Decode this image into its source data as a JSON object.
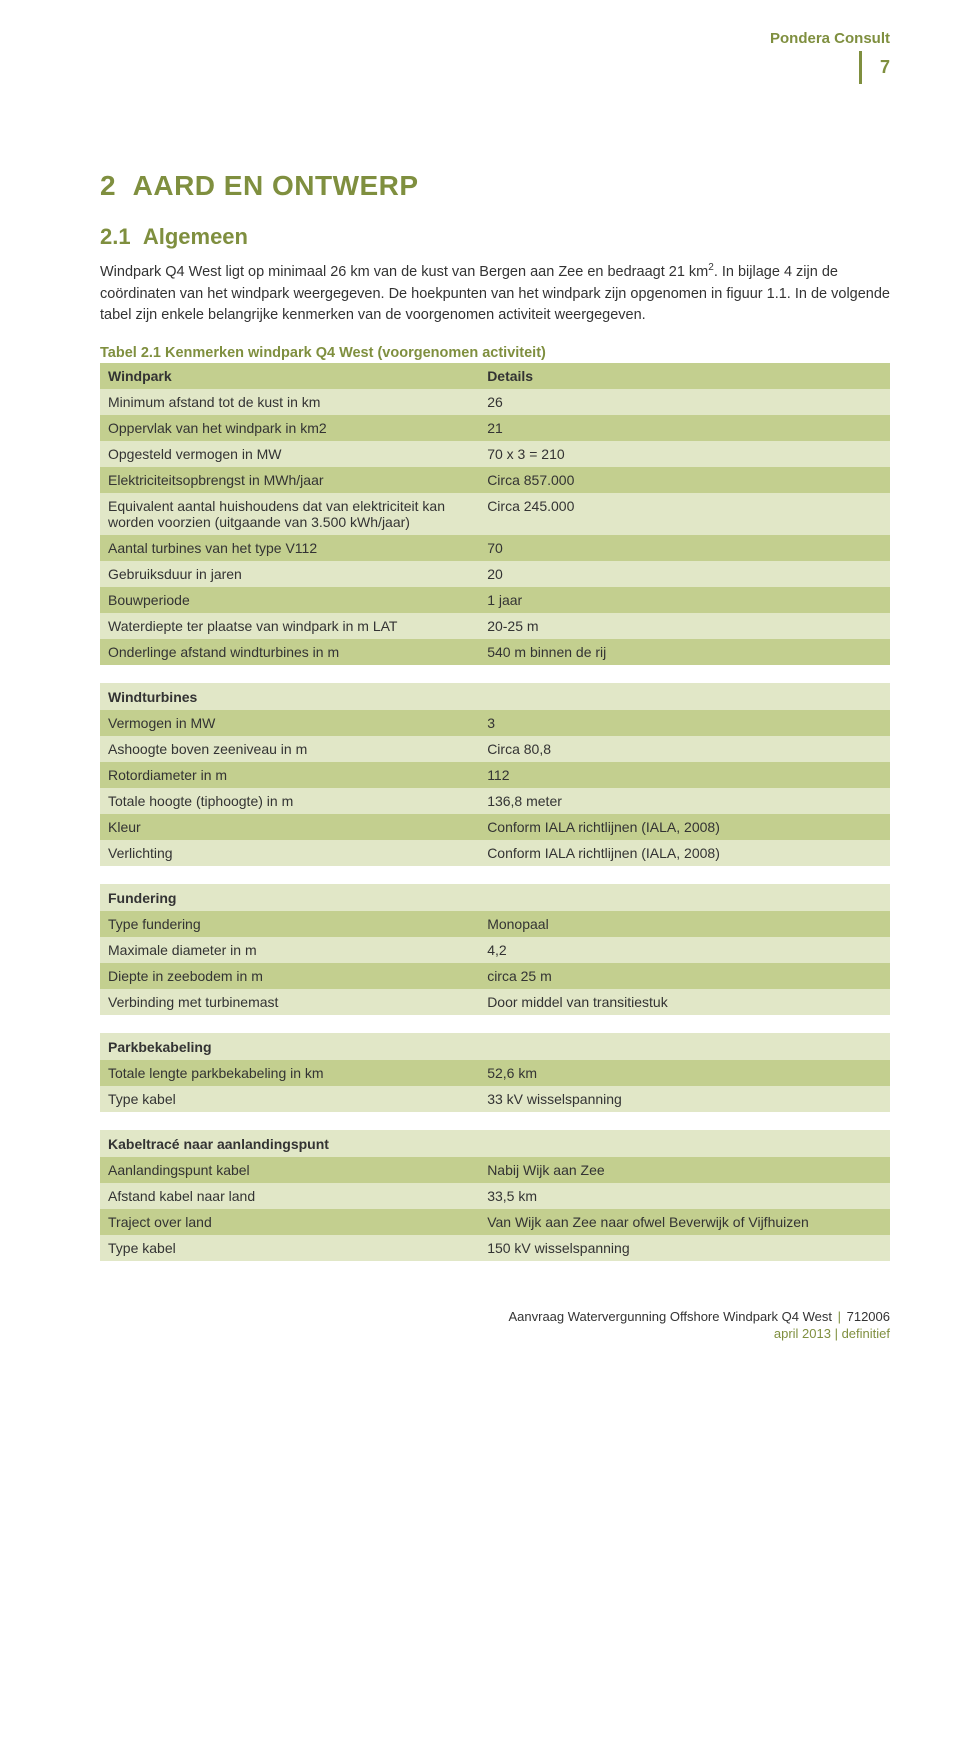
{
  "header": {
    "company": "Pondera Consult",
    "page_number": "7"
  },
  "chapter": {
    "number": "2",
    "title": "AARD EN ONTWERP"
  },
  "section": {
    "number": "2.1",
    "title": "Algemeen"
  },
  "paragraph1": "Windpark Q4 West ligt op minimaal 26 km van de kust van Bergen aan Zee en bedraagt 21 km",
  "paragraph1_sup": "2",
  "paragraph1_cont": ". In bijlage 4 zijn de coördinaten van het windpark weergegeven. De hoekpunten van het windpark zijn opgenomen in figuur 1.1. In de volgende tabel zijn enkele belangrijke kenmerken van de voorgenomen activiteit weergegeven.",
  "table_caption": "Tabel 2.1 Kenmerken windpark Q4 West (voorgenomen activiteit)",
  "table": {
    "header": {
      "col1": "Windpark",
      "col2": "Details"
    },
    "sections": [
      {
        "rows": [
          {
            "k": "Minimum afstand tot de kust in km",
            "v": "26"
          },
          {
            "k": "Oppervlak van het windpark in km2",
            "v": "21"
          },
          {
            "k": "Opgesteld vermogen in MW",
            "v": "70 x 3 = 210"
          },
          {
            "k": "Elektriciteitsopbrengst in MWh/jaar",
            "v": "Circa 857.000"
          },
          {
            "k": "Equivalent aantal huishoudens dat van elektriciteit kan worden voorzien (uitgaande van 3.500 kWh/jaar)",
            "v": "Circa 245.000"
          },
          {
            "k": "Aantal turbines van het type V112",
            "v": "70"
          },
          {
            "k": "Gebruiksduur in jaren",
            "v": "20"
          },
          {
            "k": "Bouwperiode",
            "v": "1 jaar"
          },
          {
            "k": "Waterdiepte ter plaatse van windpark in m LAT",
            "v": "20-25 m"
          },
          {
            "k": "Onderlinge afstand windturbines in m",
            "v": "540 m binnen de rij"
          }
        ]
      },
      {
        "title": "Windturbines",
        "rows": [
          {
            "k": "Vermogen in MW",
            "v": "3"
          },
          {
            "k": "Ashoogte boven zeeniveau in m",
            "v": "Circa 80,8"
          },
          {
            "k": "Rotordiameter in m",
            "v": "112"
          },
          {
            "k": "Totale hoogte (tiphoogte) in m",
            "v": "136,8 meter"
          },
          {
            "k": "Kleur",
            "v": "Conform IALA richtlijnen (IALA, 2008)"
          },
          {
            "k": "Verlichting",
            "v": "Conform IALA richtlijnen (IALA, 2008)"
          }
        ]
      },
      {
        "title": "Fundering",
        "rows": [
          {
            "k": "Type fundering",
            "v": "Monopaal"
          },
          {
            "k": "Maximale diameter in m",
            "v": "4,2"
          },
          {
            "k": "Diepte in zeebodem in m",
            "v": "circa 25 m"
          },
          {
            "k": "Verbinding met turbinemast",
            "v": "Door middel van transitiestuk"
          }
        ]
      },
      {
        "title": "Parkbekabeling",
        "rows": [
          {
            "k": "Totale lengte parkbekabeling in km",
            "v": "52,6 km"
          },
          {
            "k": "Type kabel",
            "v": "33 kV wisselspanning"
          }
        ]
      },
      {
        "title": "Kabeltracé naar aanlandingspunt",
        "rows": [
          {
            "k": "Aanlandingspunt kabel",
            "v": "Nabij Wijk aan Zee"
          },
          {
            "k": "Afstand kabel naar land",
            "v": "33,5 km"
          },
          {
            "k": "Traject over land",
            "v": "Van Wijk aan Zee naar ofwel Beverwijk of Vijfhuizen"
          },
          {
            "k": "Type kabel",
            "v": "150 kV wisselspanning"
          }
        ]
      }
    ]
  },
  "footer": {
    "doc_title": "Aanvraag Watervergunning Offshore Windpark Q4 West",
    "doc_id": "712006",
    "date_status": "april 2013 | definitief"
  }
}
